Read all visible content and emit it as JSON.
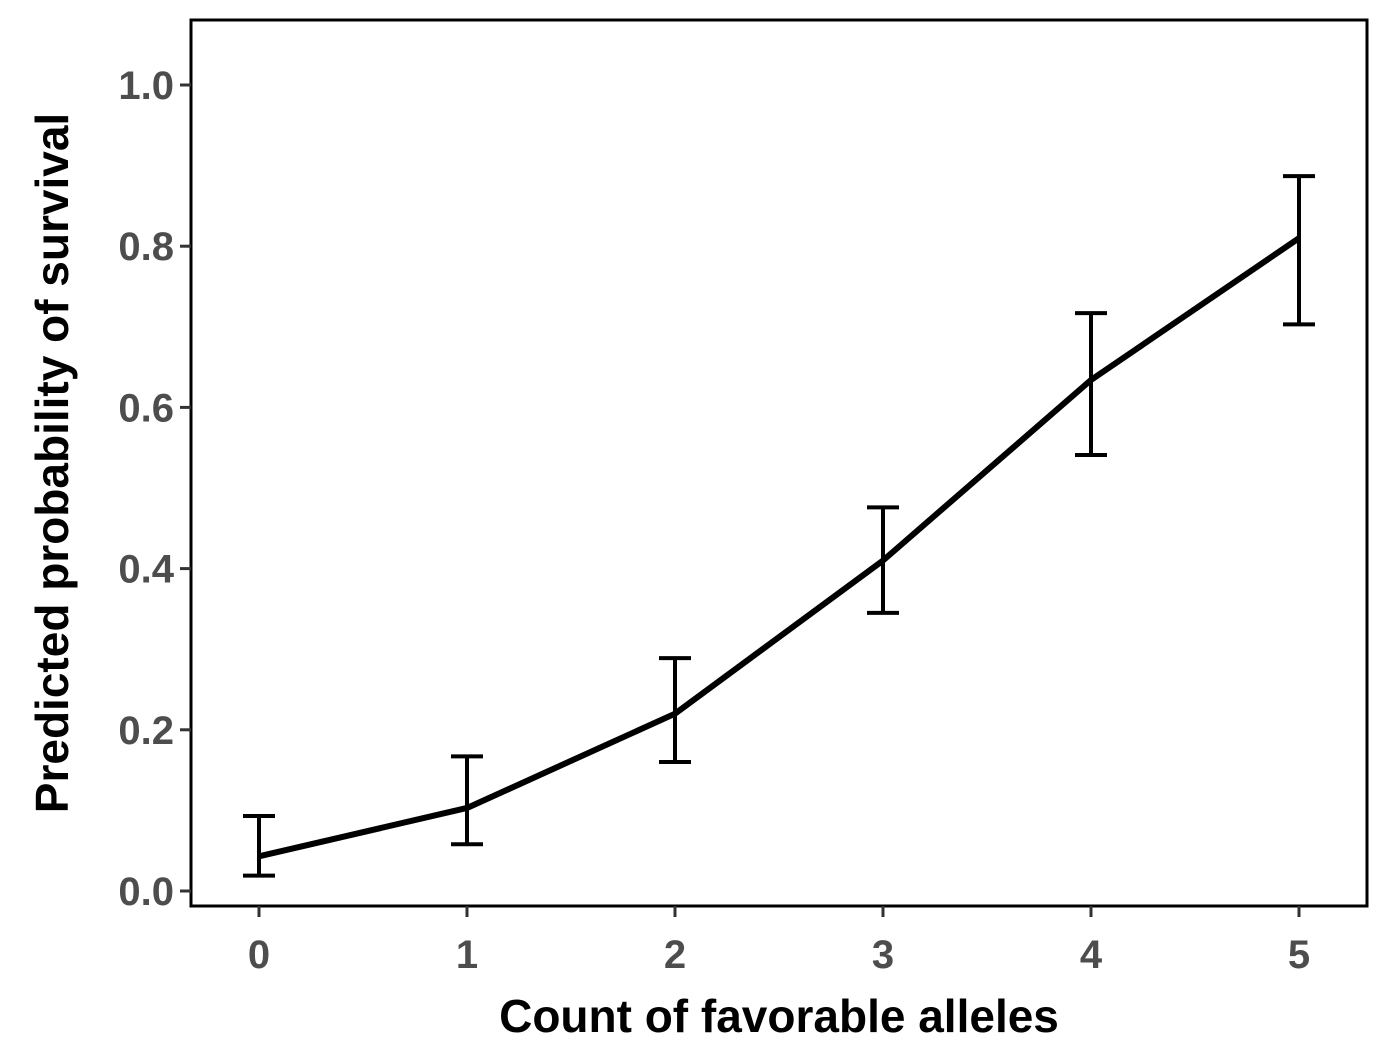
{
  "chart_data": {
    "type": "line",
    "title": "",
    "xlabel": "Count of favorable alleles",
    "ylabel": "Predicted probability of survival",
    "x": [
      0,
      1,
      2,
      3,
      4,
      5
    ],
    "x_ticks": [
      "0",
      "1",
      "2",
      "3",
      "4",
      "5"
    ],
    "y_ticks": [
      "0.0",
      "0.2",
      "0.4",
      "0.6",
      "0.8",
      "1.0"
    ],
    "ylim": [
      0.0,
      1.0
    ],
    "xlim": [
      0,
      5
    ],
    "grid": false,
    "series": [
      {
        "name": "Predicted probability",
        "values": [
          0.043,
          0.103,
          0.22,
          0.41,
          0.634,
          0.81
        ],
        "error_lower": [
          0.019,
          0.058,
          0.16,
          0.345,
          0.541,
          0.703
        ],
        "error_upper": [
          0.093,
          0.167,
          0.289,
          0.476,
          0.717,
          0.887
        ],
        "color": "#000000"
      }
    ]
  }
}
